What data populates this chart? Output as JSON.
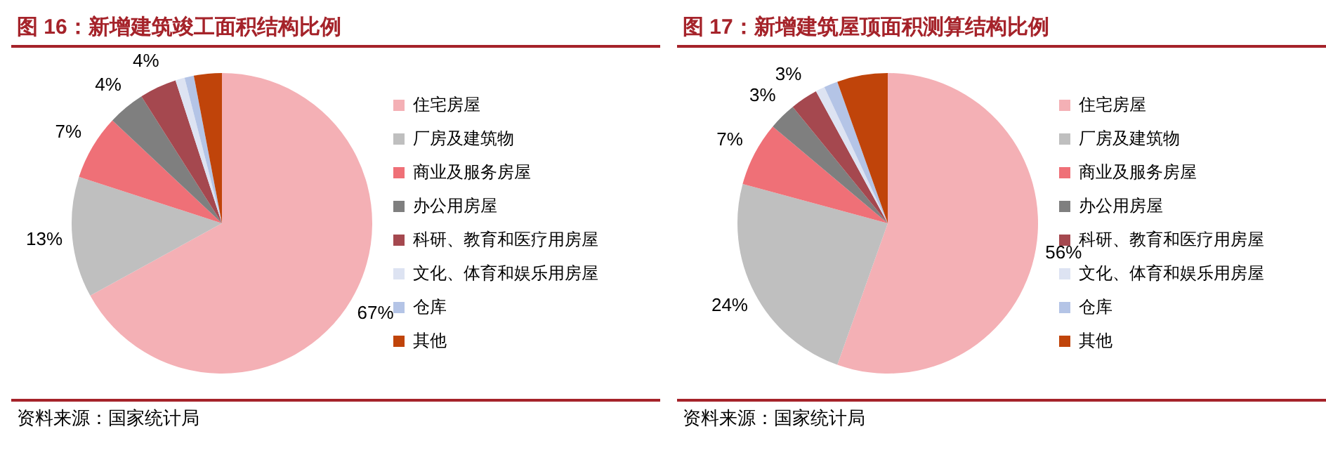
{
  "chart_data": [
    {
      "type": "pie",
      "title": "图 16：新增建筑竣工面积结构比例",
      "categories": [
        "住宅房屋",
        "厂房及建筑物",
        "商业及服务房屋",
        "办公用房屋",
        "科研、教育和医疗用房屋",
        "文化、体育和娱乐用房屋",
        "仓库",
        "其他"
      ],
      "values": [
        67,
        13,
        7,
        4,
        4,
        1,
        1,
        3
      ],
      "value_labels": [
        "67%",
        "13%",
        "7%",
        "4%",
        "4%",
        null,
        null,
        null
      ],
      "colors": [
        "#f4b0b5",
        "#bfbfbf",
        "#ef7077",
        "#7f7f7f",
        "#a5484f",
        "#dde3f2",
        "#b4c4e6",
        "#c0440a"
      ],
      "legend": "right",
      "annotations": [
        "资料来源：国家统计局"
      ]
    },
    {
      "type": "pie",
      "title": "图 17：新增建筑屋顶面积测算结构比例",
      "categories": [
        "住宅房屋",
        "厂房及建筑物",
        "商业及服务房屋",
        "办公用房屋",
        "科研、教育和医疗用房屋",
        "文化、体育和娱乐用房屋",
        "仓库",
        "其他"
      ],
      "values": [
        56,
        24,
        7,
        3,
        3,
        1,
        1.5,
        5.5
      ],
      "value_labels": [
        "56%",
        "24%",
        "7%",
        "3%",
        "3%",
        null,
        null,
        null
      ],
      "colors": [
        "#f4b0b5",
        "#bfbfbf",
        "#ef7077",
        "#7f7f7f",
        "#a5484f",
        "#dde3f2",
        "#b4c4e6",
        "#c0440a"
      ],
      "legend": "right",
      "annotations": [
        "资料来源：国家统计局"
      ]
    }
  ]
}
